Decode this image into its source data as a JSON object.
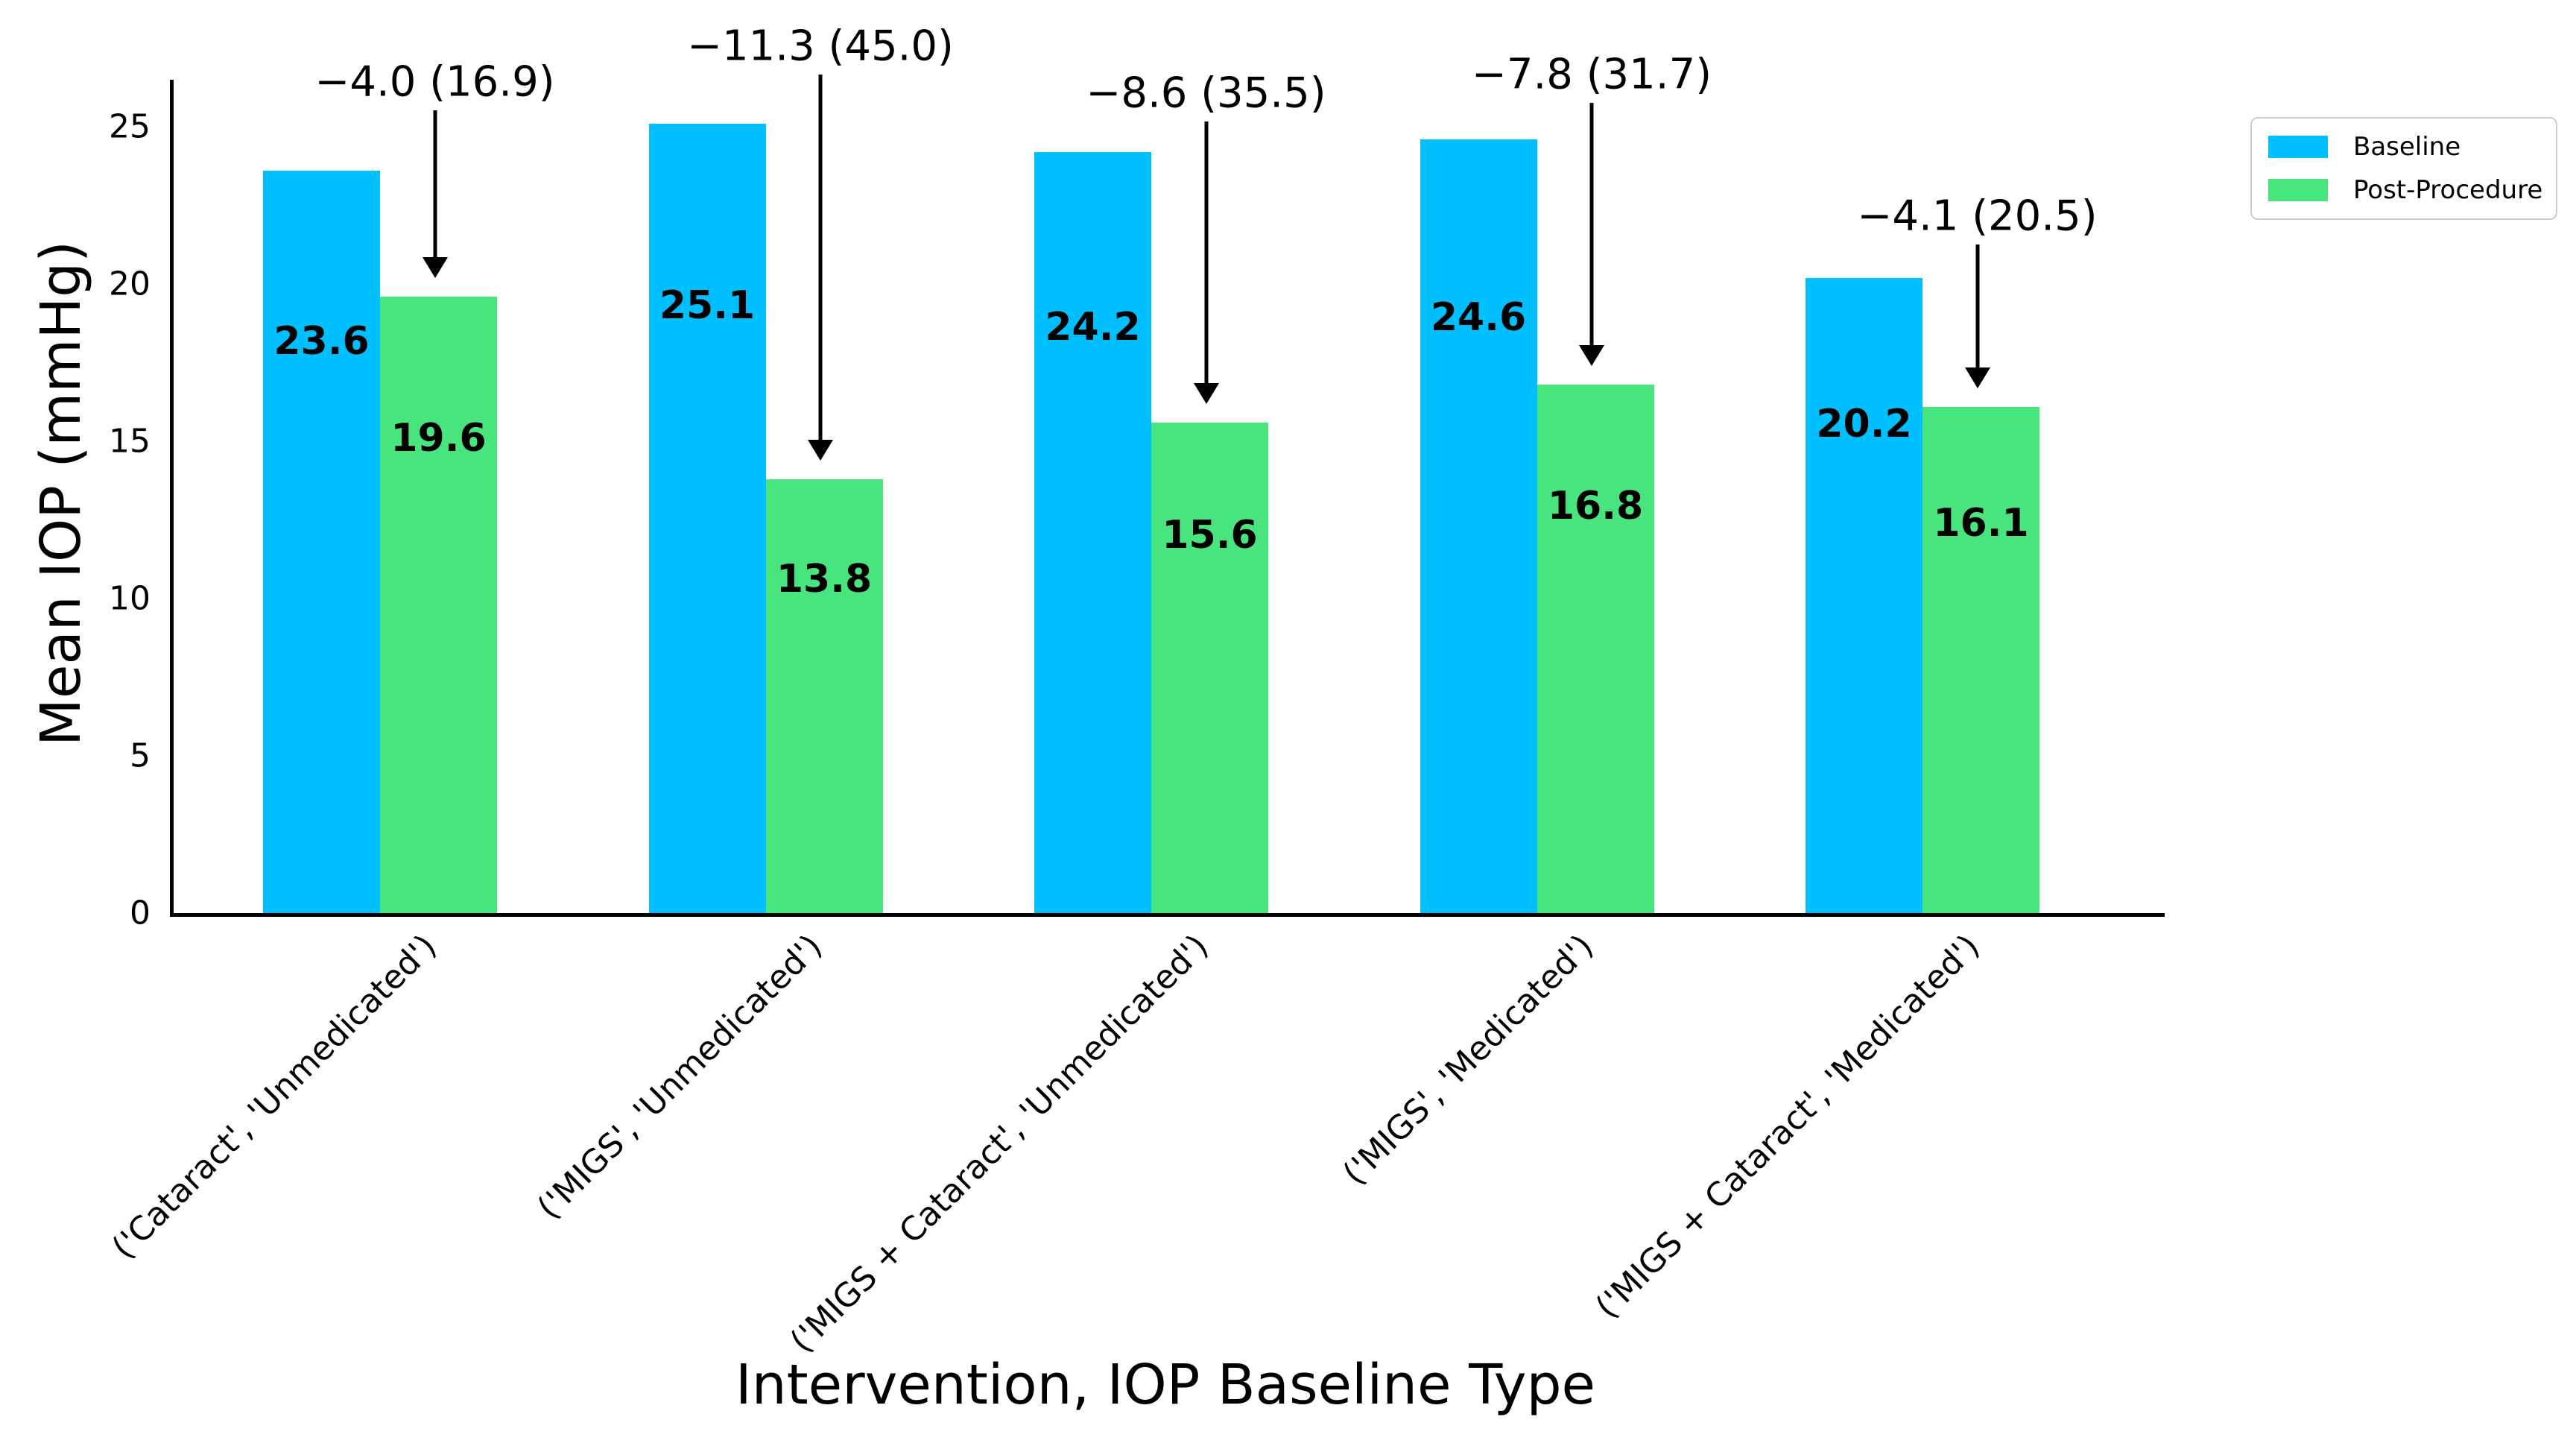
{
  "figure": {
    "title": "",
    "ylabel": "Mean IOP (mmHg)",
    "xlabel": "Intervention, IOP Baseline Type"
  },
  "legend": {
    "items": [
      {
        "label": "Baseline",
        "color": "#00bfff"
      },
      {
        "label": "Post-Procedure",
        "color": "#48e57f"
      }
    ]
  },
  "chart_data": {
    "type": "bar",
    "title": "",
    "xlabel": "Intervention, IOP Baseline Type",
    "ylabel": "Mean IOP (mmHg)",
    "categories": [
      "('Cataract', 'Unmedicated')",
      "('MIGS', 'Unmedicated')",
      "('MIGS + Cataract', 'Unmedicated')",
      "('MIGS', 'Medicated')",
      "('MIGS + Cataract', 'Medicated')"
    ],
    "series": [
      {
        "name": "Baseline",
        "color": "#00bfff",
        "values": [
          23.6,
          25.1,
          24.2,
          24.6,
          20.2
        ]
      },
      {
        "name": "Post-Procedure",
        "color": "#48e57f",
        "values": [
          19.6,
          13.8,
          15.6,
          16.8,
          16.1
        ]
      }
    ],
    "bar_value_labels": [
      [
        "23.6",
        "25.1",
        "24.2",
        "24.6",
        "20.2"
      ],
      [
        "19.6",
        "13.8",
        "15.6",
        "16.8",
        "16.1"
      ]
    ],
    "annotations": [
      {
        "text": "−4.0 (16.9)",
        "target_category": 0
      },
      {
        "text": "−11.3 (45.0)",
        "target_category": 1
      },
      {
        "text": "−8.6 (35.5)",
        "target_category": 2
      },
      {
        "text": "−7.8 (31.7)",
        "target_category": 3
      },
      {
        "text": "−4.1 (20.5)",
        "target_category": 4
      }
    ],
    "yticks": [
      "0",
      "5",
      "10",
      "15",
      "20",
      "25"
    ],
    "ylim": [
      0,
      26.5
    ],
    "grid": false,
    "legend_position": "upper right"
  }
}
